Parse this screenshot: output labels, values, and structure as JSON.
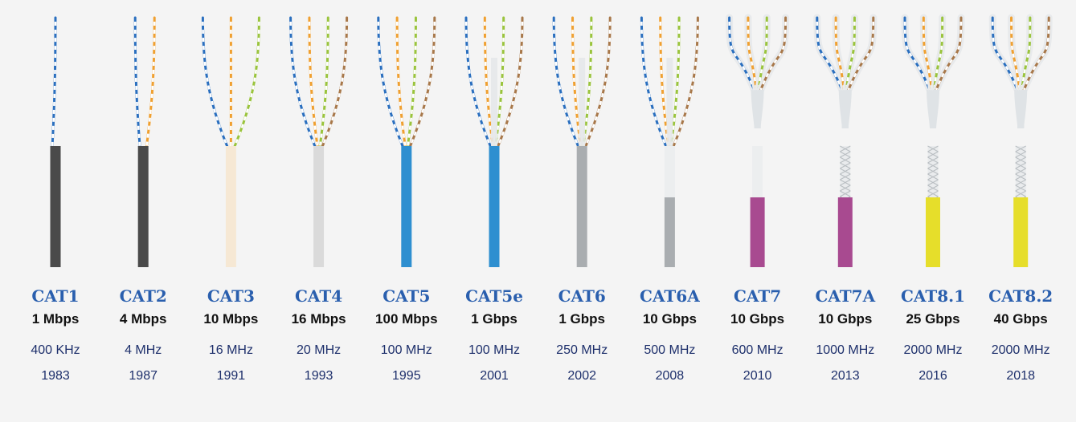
{
  "colors": {
    "blue": "#2a6fbf",
    "orange": "#f0a030",
    "green": "#9ac43c",
    "brown": "#a8784a",
    "label": "#2a5fae",
    "background": "#f4f4f4"
  },
  "cables": [
    {
      "name": "CAT1",
      "speed": "1 Mbps",
      "frequency": "400 KHz",
      "year": "1983",
      "jacket_color": "#4a4a4a",
      "pairs": 1
    },
    {
      "name": "CAT2",
      "speed": "4 Mbps",
      "frequency": "4 MHz",
      "year": "1987",
      "jacket_color": "#4a4a4a",
      "pairs": 2
    },
    {
      "name": "CAT3",
      "speed": "10 Mbps",
      "frequency": "16 MHz",
      "year": "1991",
      "jacket_color": "#f6e8d4",
      "pairs": 3
    },
    {
      "name": "CAT4",
      "speed": "16 Mbps",
      "frequency": "20 MHz",
      "year": "1993",
      "jacket_color": "#dadada",
      "pairs": 4
    },
    {
      "name": "CAT5",
      "speed": "100 Mbps",
      "frequency": "100 MHz",
      "year": "1995",
      "jacket_color": "#2e8fd0",
      "pairs": 4
    },
    {
      "name": "CAT5e",
      "speed": "1 Gbps",
      "frequency": "100 MHz",
      "year": "2001",
      "jacket_color": "#2e8fd0",
      "pairs": 4
    },
    {
      "name": "CAT6",
      "speed": "1 Gbps",
      "frequency": "250 MHz",
      "year": "2002",
      "jacket_color": "#a9adb0",
      "pairs": 4
    },
    {
      "name": "CAT6A",
      "speed": "10 Gbps",
      "frequency": "500 MHz",
      "year": "2008",
      "jacket_color": "#a9adb0",
      "pairs": 4
    },
    {
      "name": "CAT7",
      "speed": "10 Gbps",
      "frequency": "600 MHz",
      "year": "2010",
      "jacket_color": "#a84a90",
      "pairs": 4
    },
    {
      "name": "CAT7A",
      "speed": "10 Gbps",
      "frequency": "1000 MHz",
      "year": "2013",
      "jacket_color": "#a84a90",
      "pairs": 4
    },
    {
      "name": "CAT8.1",
      "speed": "25 Gbps",
      "frequency": "2000 MHz",
      "year": "2016",
      "jacket_color": "#e6de2a",
      "pairs": 4
    },
    {
      "name": "CAT8.2",
      "speed": "40 Gbps",
      "frequency": "2000 MHz",
      "year": "2018",
      "jacket_color": "#e6de2a",
      "pairs": 4
    }
  ]
}
